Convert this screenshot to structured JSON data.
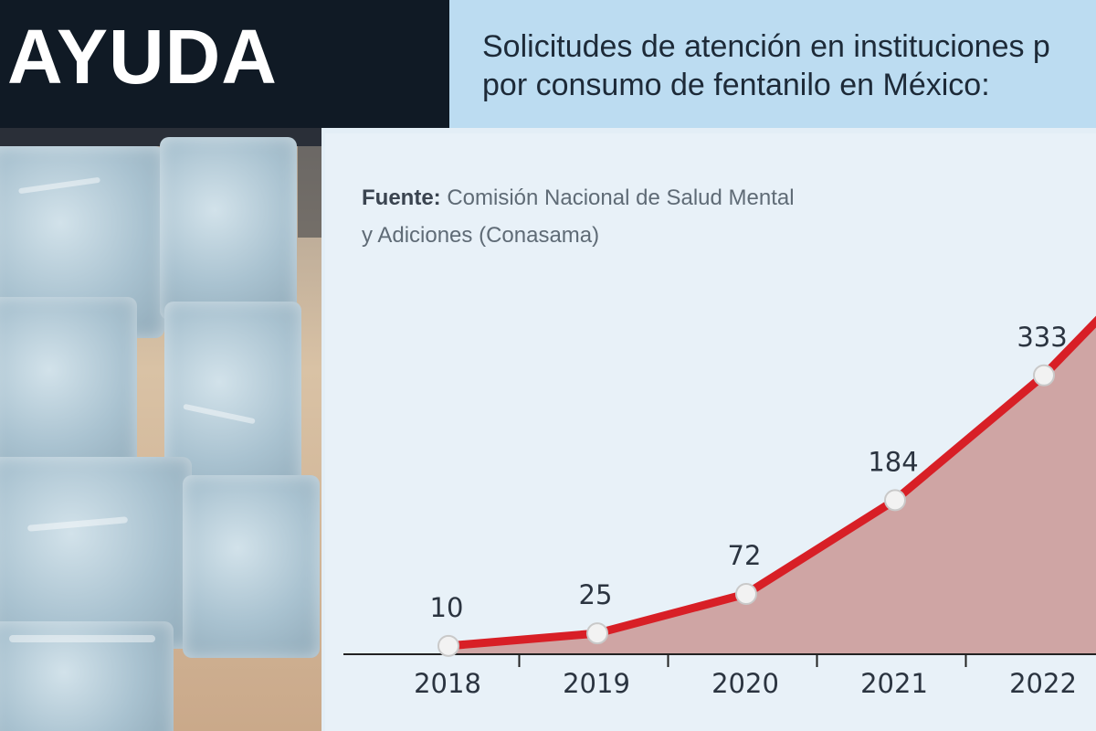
{
  "header": {
    "badge": "AYUDA",
    "headline_line1": "Solicitudes de atención en instituciones p",
    "headline_line2": "por consumo de fentanilo en México:"
  },
  "source": {
    "label": "Fuente:",
    "text_line1": " Comisión Nacional de Salud Mental",
    "text_line2": "y Adiciones (Conasama)"
  },
  "colors": {
    "line": "#d81f26",
    "area": "#cfa5a4",
    "axis": "#222222",
    "badge_bg": "#101a25",
    "headline_bg": "#bcdcf1"
  },
  "chart_data": {
    "type": "area",
    "title": "Solicitudes de atención en instituciones p por consumo de fentanilo en México:",
    "categories": [
      "2018",
      "2019",
      "2020",
      "2021",
      "2022"
    ],
    "series": [
      {
        "values": [
          10,
          25,
          72,
          184,
          333
        ]
      }
    ],
    "data_labels": [
      "10",
      "25",
      "72",
      "184",
      "333"
    ],
    "ylim": [
      0,
      420
    ],
    "grid": false,
    "legend": "none",
    "markers": "white circles",
    "truncated_right": true
  }
}
